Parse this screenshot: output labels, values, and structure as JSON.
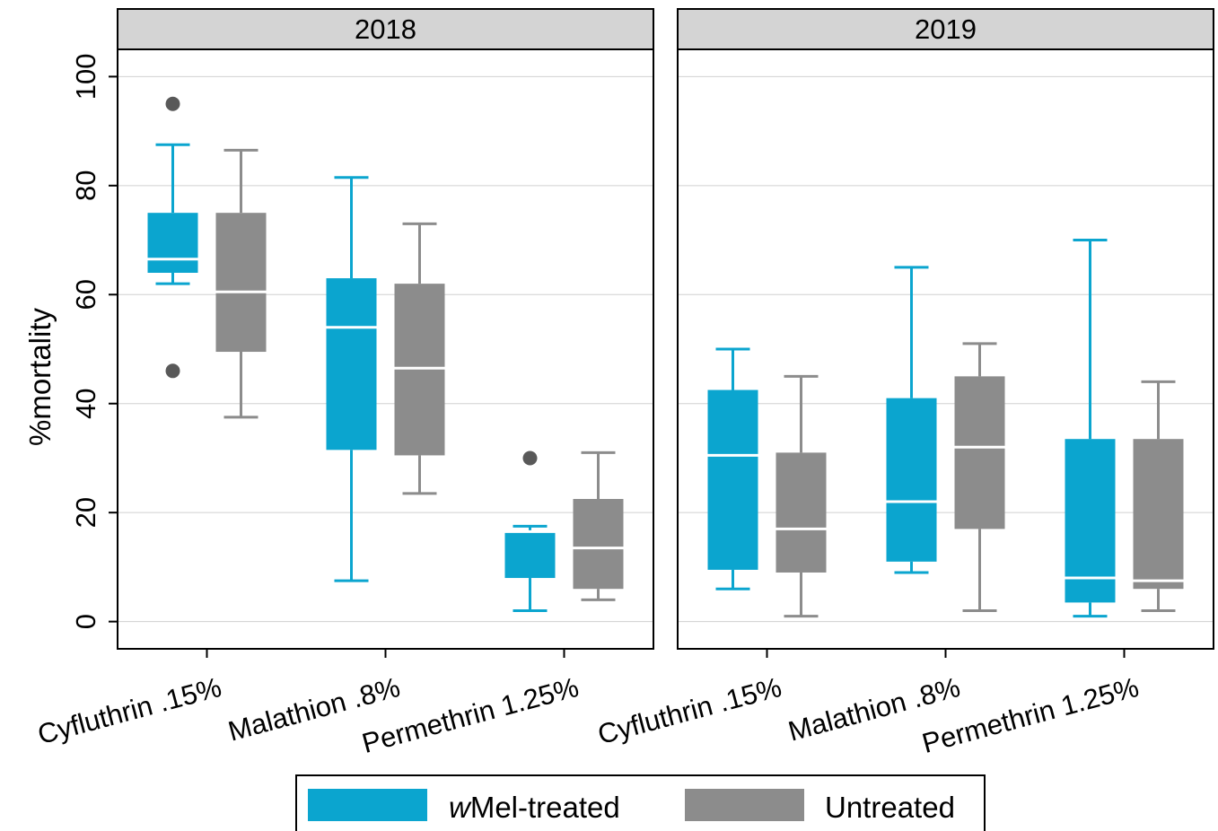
{
  "chart_data": {
    "type": "box",
    "ylabel": "%mortality",
    "xlabel": "",
    "ylim": [
      -5,
      105
    ],
    "yticks": [
      0,
      20,
      40,
      60,
      80,
      100
    ],
    "grid": "horizontal",
    "categories": [
      "Cyfluthrin .15%",
      "Malathion .8%",
      "Permethrin 1.25%"
    ],
    "legend": {
      "placement": "bottom",
      "items": [
        {
          "prefix": "w",
          "label": "Mel-treated",
          "color": "#0ba5cf"
        },
        {
          "prefix": "",
          "label": "Untreated",
          "color": "#8c8c8c"
        }
      ]
    },
    "colors": {
      "treated": "#0ba5cf",
      "untreated": "#8c8c8c",
      "strip": "#d4d4d4",
      "outlier": "#595959"
    },
    "panels": [
      {
        "title": "2018",
        "groups": [
          {
            "category": "Cyfluthrin .15%",
            "treated": {
              "min": 62,
              "q1": 64,
              "median": 66.5,
              "q3": 75,
              "max": 87.5,
              "outliers": [
                95,
                46
              ]
            },
            "untreated": {
              "min": 37.5,
              "q1": 49.5,
              "median": 60.5,
              "q3": 75,
              "max": 86.5,
              "outliers": []
            }
          },
          {
            "category": "Malathion .8%",
            "treated": {
              "min": 7.5,
              "q1": 31.5,
              "median": 54,
              "q3": 63,
              "max": 81.5,
              "outliers": []
            },
            "untreated": {
              "min": 23.5,
              "q1": 30.5,
              "median": 46.5,
              "q3": 62,
              "max": 73,
              "outliers": []
            }
          },
          {
            "category": "Permethrin 1.25%",
            "treated": {
              "min": 2,
              "q1": 8,
              "median": 16.5,
              "q3": 16.5,
              "max": 17.5,
              "outliers": [
                30
              ]
            },
            "untreated": {
              "min": 4,
              "q1": 6,
              "median": 13.5,
              "q3": 22.5,
              "max": 31,
              "outliers": []
            }
          }
        ]
      },
      {
        "title": "2019",
        "groups": [
          {
            "category": "Cyfluthrin .15%",
            "treated": {
              "min": 6,
              "q1": 9.5,
              "median": 30.5,
              "q3": 42.5,
              "max": 50,
              "outliers": []
            },
            "untreated": {
              "min": 1,
              "q1": 9,
              "median": 17,
              "q3": 31,
              "max": 45,
              "outliers": []
            }
          },
          {
            "category": "Malathion .8%",
            "treated": {
              "min": 9,
              "q1": 11,
              "median": 22,
              "q3": 41,
              "max": 65,
              "outliers": []
            },
            "untreated": {
              "min": 2,
              "q1": 17,
              "median": 32,
              "q3": 45,
              "max": 51,
              "outliers": []
            }
          },
          {
            "category": "Permethrin 1.25%",
            "treated": {
              "min": 1,
              "q1": 3.5,
              "median": 8,
              "q3": 33.5,
              "max": 70,
              "outliers": []
            },
            "untreated": {
              "min": 2,
              "q1": 6,
              "median": 7.5,
              "q3": 33.5,
              "max": 44,
              "outliers": []
            }
          }
        ]
      }
    ]
  }
}
